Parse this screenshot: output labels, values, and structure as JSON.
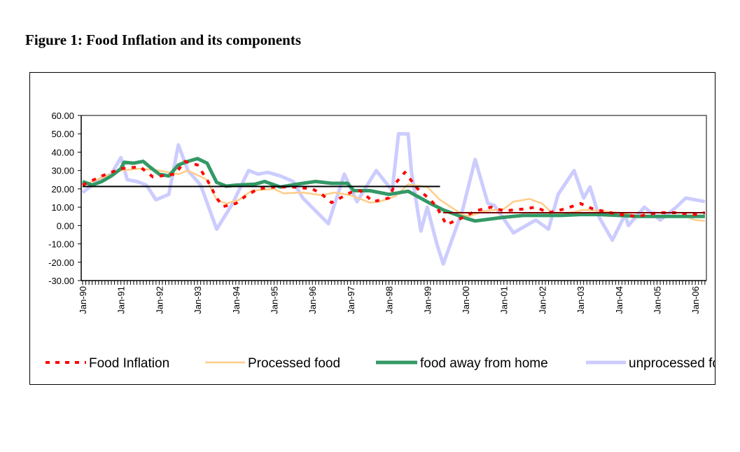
{
  "figure_title": "Figure 1: Food Inflation and its components",
  "chart_data": {
    "type": "line",
    "title": "",
    "xlabel": "",
    "ylabel": "",
    "ylim": [
      -30,
      60
    ],
    "yticks": [
      "60.00",
      "50.00",
      "40.00",
      "30.00",
      "20.00",
      "10.00",
      "0.00",
      "-10.00",
      "-20.00",
      "-30.00"
    ],
    "xticks": [
      "Jan-90",
      "Jan-91",
      "Jan-92",
      "Jan-93",
      "Jan-94",
      "Jan-95",
      "Jan-96",
      "Jan-97",
      "Jan-98",
      "Jan-99",
      "Jan-00",
      "Jan-01",
      "Jan-02",
      "Jan-03",
      "Jan-04",
      "Jan-05",
      "Jan-06"
    ],
    "xrange": [
      "1990-01",
      "2006-04"
    ],
    "grid": false,
    "legend_position": "bottom",
    "series": [
      {
        "name": "unprocessed food",
        "legend_label": "unprocessed fo",
        "color": "#ccccff",
        "style": "wide-light",
        "points": [
          [
            "1990-01",
            18
          ],
          [
            "1990-04",
            22
          ],
          [
            "1990-07",
            26
          ],
          [
            "1990-10",
            28
          ],
          [
            "1991-01",
            37
          ],
          [
            "1991-03",
            25
          ],
          [
            "1991-06",
            24
          ],
          [
            "1991-09",
            22
          ],
          [
            "1991-12",
            14
          ],
          [
            "1992-04",
            17
          ],
          [
            "1992-07",
            44
          ],
          [
            "1992-10",
            30
          ],
          [
            "1993-02",
            22
          ],
          [
            "1993-07",
            -2
          ],
          [
            "1993-12",
            12
          ],
          [
            "1994-05",
            30
          ],
          [
            "1994-08",
            28
          ],
          [
            "1994-11",
            29
          ],
          [
            "1995-03",
            27
          ],
          [
            "1995-07",
            24
          ],
          [
            "1995-10",
            15
          ],
          [
            "1996-06",
            1
          ],
          [
            "1996-11",
            28
          ],
          [
            "1997-03",
            13
          ],
          [
            "1997-09",
            30
          ],
          [
            "1998-02",
            19
          ],
          [
            "1998-04",
            50
          ],
          [
            "1998-07",
            50
          ],
          [
            "1998-08",
            30
          ],
          [
            "1998-11",
            -3
          ],
          [
            "1999-01",
            10
          ],
          [
            "1999-04",
            -10
          ],
          [
            "1999-06",
            -21
          ],
          [
            "1999-12",
            8
          ],
          [
            "2000-04",
            36
          ],
          [
            "2000-08",
            12
          ],
          [
            "2000-10",
            11
          ],
          [
            "2001-04",
            -4
          ],
          [
            "2001-11",
            3
          ],
          [
            "2002-03",
            -2
          ],
          [
            "2002-06",
            17
          ],
          [
            "2002-11",
            30
          ],
          [
            "2003-02",
            15
          ],
          [
            "2003-04",
            21
          ],
          [
            "2003-07",
            4
          ],
          [
            "2003-11",
            -8
          ],
          [
            "2004-03",
            6
          ],
          [
            "2004-04",
            0
          ],
          [
            "2004-09",
            10
          ],
          [
            "2005-02",
            3
          ],
          [
            "2005-07",
            10
          ],
          [
            "2005-10",
            15
          ],
          [
            "2006-04",
            13
          ]
        ]
      },
      {
        "name": "Processed food",
        "legend_label": "Processed food",
        "color": "#ffcc88",
        "style": "solid",
        "points": [
          [
            "1990-01",
            22
          ],
          [
            "1990-07",
            26
          ],
          [
            "1991-01",
            30
          ],
          [
            "1991-07",
            31
          ],
          [
            "1992-01",
            30
          ],
          [
            "1992-07",
            28
          ],
          [
            "1992-10",
            30
          ],
          [
            "1993-04",
            25
          ],
          [
            "1993-07",
            14
          ],
          [
            "1993-10",
            12
          ],
          [
            "1994-02",
            14
          ],
          [
            "1994-06",
            19
          ],
          [
            "1995-01",
            20
          ],
          [
            "1995-04",
            17.5
          ],
          [
            "1995-10",
            18
          ],
          [
            "1996-04",
            16.5
          ],
          [
            "1996-08",
            18
          ],
          [
            "1997-01",
            16.5
          ],
          [
            "1997-07",
            12.5
          ],
          [
            "1997-10",
            13
          ],
          [
            "1998-03",
            16
          ],
          [
            "1998-07",
            22.5
          ],
          [
            "1999-01",
            21
          ],
          [
            "1999-05",
            14
          ],
          [
            "1999-12",
            6
          ],
          [
            "2000-02",
            5
          ],
          [
            "2000-07",
            8
          ],
          [
            "2001-01",
            9
          ],
          [
            "2001-04",
            13
          ],
          [
            "2001-09",
            14.5
          ],
          [
            "2002-01",
            12
          ],
          [
            "2002-04",
            7
          ],
          [
            "2002-10",
            7
          ],
          [
            "2003-02",
            8.5
          ],
          [
            "2003-07",
            8
          ],
          [
            "2004-01",
            7
          ],
          [
            "2004-07",
            5
          ],
          [
            "2005-01",
            5
          ],
          [
            "2005-07",
            5
          ],
          [
            "2005-10",
            5
          ],
          [
            "2006-01",
            3
          ],
          [
            "2006-04",
            2.5
          ]
        ]
      },
      {
        "name": "food away from home",
        "legend_label": "food away from home",
        "color": "#339966",
        "style": "thick",
        "points": [
          [
            "1990-01",
            24
          ],
          [
            "1990-04",
            22
          ],
          [
            "1990-07",
            24
          ],
          [
            "1990-10",
            27
          ],
          [
            "1991-01",
            31
          ],
          [
            "1991-02",
            34.5
          ],
          [
            "1991-05",
            34
          ],
          [
            "1991-08",
            35
          ],
          [
            "1991-10",
            32
          ],
          [
            "1992-01",
            28
          ],
          [
            "1992-04",
            27
          ],
          [
            "1992-07",
            33
          ],
          [
            "1992-10",
            35
          ],
          [
            "1993-01",
            36.5
          ],
          [
            "1993-04",
            34
          ],
          [
            "1993-07",
            23.5
          ],
          [
            "1993-10",
            21.5
          ],
          [
            "1994-01",
            22
          ],
          [
            "1994-07",
            22.5
          ],
          [
            "1994-10",
            24
          ],
          [
            "1995-03",
            21
          ],
          [
            "1995-08",
            22.5
          ],
          [
            "1996-02",
            24
          ],
          [
            "1996-07",
            23
          ],
          [
            "1996-12",
            23
          ],
          [
            "1997-02",
            19
          ],
          [
            "1997-07",
            19
          ],
          [
            "1998-01",
            17
          ],
          [
            "1998-07",
            18.7
          ],
          [
            "1999-02",
            12
          ],
          [
            "1999-06",
            8.5
          ],
          [
            "2000-01",
            4
          ],
          [
            "2000-04",
            2.5
          ],
          [
            "2001-01",
            4.5
          ],
          [
            "2001-07",
            5.5
          ],
          [
            "2002-01",
            5.5
          ],
          [
            "2002-07",
            5.5
          ],
          [
            "2003-01",
            6
          ],
          [
            "2003-07",
            6
          ],
          [
            "2004-01",
            5.5
          ],
          [
            "2004-07",
            5
          ],
          [
            "2005-01",
            5
          ],
          [
            "2005-07",
            5
          ],
          [
            "2006-04",
            5
          ]
        ]
      },
      {
        "name": "Food Inflation",
        "legend_label": "Food Inflation",
        "color": "#ff0000",
        "style": "dashed",
        "points": [
          [
            "1990-01",
            22
          ],
          [
            "1990-07",
            27
          ],
          [
            "1991-01",
            31
          ],
          [
            "1991-07",
            32
          ],
          [
            "1991-11",
            26.5
          ],
          [
            "1992-06",
            28
          ],
          [
            "1992-09",
            35
          ],
          [
            "1993-01",
            33
          ],
          [
            "1993-04",
            25
          ],
          [
            "1993-07",
            15
          ],
          [
            "1993-09",
            10.3
          ],
          [
            "1994-01",
            12
          ],
          [
            "1994-04",
            16
          ],
          [
            "1994-08",
            20
          ],
          [
            "1995-01",
            21
          ],
          [
            "1995-07",
            21
          ],
          [
            "1996-01",
            20
          ],
          [
            "1996-04",
            17
          ],
          [
            "1996-07",
            12.5
          ],
          [
            "1997-01",
            18
          ],
          [
            "1997-04",
            19
          ],
          [
            "1997-08",
            13
          ],
          [
            "1998-01",
            15
          ],
          [
            "1998-03",
            23
          ],
          [
            "1998-06",
            29
          ],
          [
            "1998-10",
            20
          ],
          [
            "1999-02",
            14
          ],
          [
            "1999-04",
            10
          ],
          [
            "1999-07",
            0.5
          ],
          [
            "2000-01",
            5
          ],
          [
            "2000-04",
            8
          ],
          [
            "2000-09",
            10
          ],
          [
            "2001-01",
            8
          ],
          [
            "2001-07",
            9
          ],
          [
            "2001-11",
            10
          ],
          [
            "2002-03",
            7
          ],
          [
            "2002-08",
            9
          ],
          [
            "2003-01",
            12
          ],
          [
            "2003-05",
            9
          ],
          [
            "2004-01",
            6
          ],
          [
            "2004-07",
            5
          ],
          [
            "2005-01",
            7
          ],
          [
            "2005-07",
            7
          ],
          [
            "2006-01",
            6
          ],
          [
            "2006-04",
            7
          ]
        ]
      }
    ],
    "reference_lines": [
      {
        "value": 21.3,
        "from": "1990-01",
        "to": "1999-05",
        "color": "#000000"
      },
      {
        "value": 7.0,
        "from": "1999-06",
        "to": "2006-04",
        "color": "#800000"
      }
    ]
  }
}
